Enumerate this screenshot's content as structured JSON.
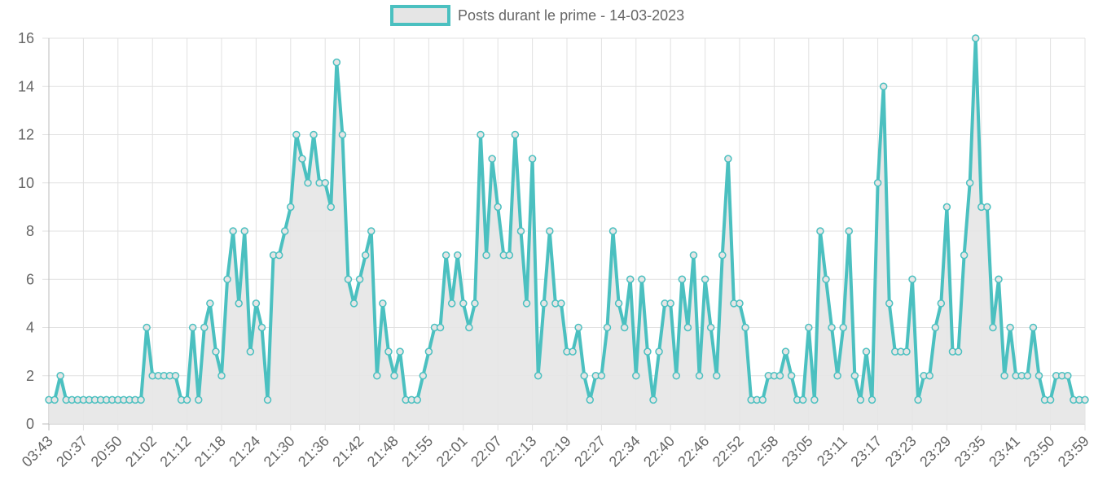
{
  "chart_data": {
    "type": "line",
    "legend": "top",
    "grid": true,
    "ylim": [
      0,
      16
    ],
    "yticks": [
      0,
      2,
      4,
      6,
      8,
      10,
      12,
      14,
      16
    ],
    "categories": [
      "03:43",
      null,
      null,
      null,
      null,
      null,
      "20:37",
      null,
      null,
      null,
      null,
      null,
      "20:50",
      null,
      null,
      null,
      null,
      null,
      "21:02",
      null,
      null,
      null,
      null,
      null,
      "21:12",
      null,
      null,
      null,
      null,
      null,
      "21:18",
      null,
      null,
      null,
      null,
      null,
      "21:24",
      null,
      null,
      null,
      null,
      null,
      "21:30",
      null,
      null,
      null,
      null,
      null,
      "21:36",
      null,
      null,
      null,
      null,
      null,
      "21:42",
      null,
      null,
      null,
      null,
      null,
      "21:48",
      null,
      null,
      null,
      null,
      null,
      "21:55",
      null,
      null,
      null,
      null,
      null,
      "22:01",
      null,
      null,
      null,
      null,
      null,
      "22:07",
      null,
      null,
      null,
      null,
      null,
      "22:13",
      null,
      null,
      null,
      null,
      null,
      "22:19",
      null,
      null,
      null,
      null,
      null,
      "22:27",
      null,
      null,
      null,
      null,
      null,
      "22:34",
      null,
      null,
      null,
      null,
      null,
      "22:40",
      null,
      null,
      null,
      null,
      null,
      "22:46",
      null,
      null,
      null,
      null,
      null,
      "22:52",
      null,
      null,
      null,
      null,
      null,
      "22:58",
      null,
      null,
      null,
      null,
      null,
      "23:05",
      null,
      null,
      null,
      null,
      null,
      "23:11",
      null,
      null,
      null,
      null,
      null,
      "23:17",
      null,
      null,
      null,
      null,
      null,
      "23:23",
      null,
      null,
      null,
      null,
      null,
      "23:29",
      null,
      null,
      null,
      null,
      null,
      "23:35",
      null,
      null,
      null,
      null,
      null,
      "23:41",
      null,
      null,
      null,
      null,
      null,
      "23:50",
      null,
      null,
      null,
      null,
      null,
      "23:59"
    ],
    "series": [
      {
        "name": "Posts durant le prime - 14-03-2023",
        "color": "#4bc0c0",
        "fill": "#e5e5e5",
        "values": [
          1,
          1,
          2,
          1,
          1,
          1,
          1,
          1,
          1,
          1,
          1,
          1,
          1,
          1,
          1,
          1,
          1,
          4,
          2,
          2,
          2,
          2,
          2,
          1,
          1,
          4,
          1,
          4,
          5,
          3,
          2,
          6,
          8,
          5,
          8,
          3,
          5,
          4,
          1,
          7,
          7,
          8,
          9,
          12,
          11,
          10,
          12,
          10,
          10,
          9,
          15,
          12,
          6,
          5,
          6,
          7,
          8,
          2,
          5,
          3,
          2,
          3,
          1,
          1,
          1,
          2,
          3,
          4,
          4,
          7,
          5,
          7,
          5,
          4,
          5,
          12,
          7,
          11,
          9,
          7,
          7,
          12,
          8,
          5,
          11,
          2,
          5,
          8,
          5,
          5,
          3,
          3,
          4,
          2,
          1,
          2,
          2,
          4,
          8,
          5,
          4,
          6,
          2,
          6,
          3,
          1,
          3,
          5,
          5,
          2,
          6,
          4,
          7,
          2,
          6,
          4,
          2,
          7,
          11,
          5,
          5,
          4,
          1,
          1,
          1,
          2,
          2,
          2,
          3,
          2,
          1,
          1,
          4,
          1,
          8,
          6,
          4,
          2,
          4,
          8,
          2,
          1,
          3,
          1,
          10,
          14,
          5,
          3,
          3,
          3,
          6,
          1,
          2,
          2,
          4,
          5,
          9,
          3,
          3,
          7,
          10,
          16,
          9,
          9,
          4,
          6,
          2,
          4,
          2,
          2,
          2,
          4,
          2,
          1,
          1,
          2,
          2,
          2,
          1,
          1,
          1
        ]
      }
    ]
  }
}
